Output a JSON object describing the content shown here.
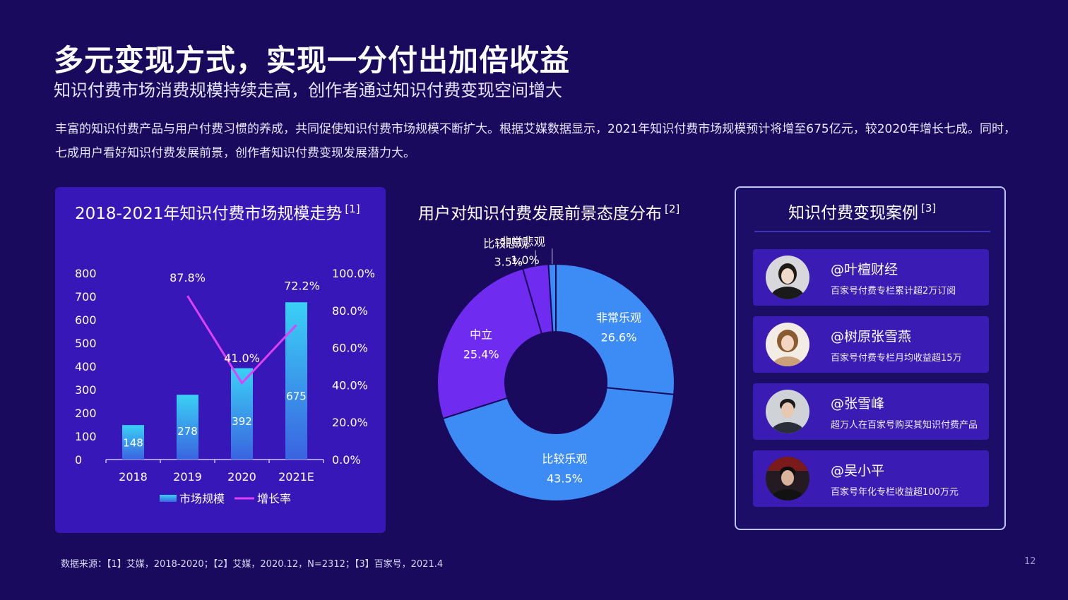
{
  "page": {
    "title": "多元变现方式，实现一分付出加倍收益",
    "subtitle": "知识付费市场消费规模持续走高，创作者通过知识付费变现空间增大",
    "paragraph": "丰富的知识付费产品与用户付费习惯的养成，共同促使知识付费市场规模不断扩大。根据艾媒数据显示，2021年知识付费市场规模预计将增至675亿元，较2020年增长七成。同时，七成用户看好知识付费发展前景，创作者知识付费变现发展潜力大。",
    "footnote": "数据来源：【1】艾媒，2018-2020；【2】艾媒，2020.12，N=2312；【3】百家号，2021.4",
    "page_number": "12"
  },
  "chart_data": [
    {
      "type": "bar",
      "title": "2018-2021年知识付费市场规模走势",
      "title_ref": "[1]",
      "categories": [
        "2018",
        "2019",
        "2020",
        "2021E"
      ],
      "series": [
        {
          "name": "市场规模",
          "type": "bar",
          "axis": "left",
          "values": [
            148,
            278,
            392,
            675
          ],
          "labels": [
            "148",
            "278",
            "392",
            "675"
          ],
          "color": "#3ad1f5"
        },
        {
          "name": "增长率",
          "type": "line",
          "axis": "right",
          "values": [
            null,
            87.8,
            41.0,
            72.2
          ],
          "labels": [
            "",
            "87.8%",
            "41.0%",
            "72.2%"
          ],
          "color": "#e040fb"
        }
      ],
      "ylim": [
        0,
        800
      ],
      "y_ticks": [
        "0",
        "100",
        "200",
        "300",
        "400",
        "500",
        "600",
        "700",
        "800"
      ],
      "y2lim": [
        0,
        100
      ],
      "y2_ticks": [
        "0.0%",
        "20.0%",
        "40.0%",
        "60.0%",
        "80.0%",
        "100.0%"
      ],
      "legend": "bottom"
    },
    {
      "type": "pie",
      "title": "用户对知识付费发展前景态度分布",
      "title_ref": "[2]",
      "donut": true,
      "slices": [
        {
          "label": "非常乐观",
          "value": 26.6,
          "text": "26.6%",
          "color": "#3d8bf5"
        },
        {
          "label": "比较乐观",
          "value": 43.5,
          "text": "43.5%",
          "color": "#3d8bf5"
        },
        {
          "label": "中立",
          "value": 25.4,
          "text": "25.4%",
          "color": "#6f2cf0"
        },
        {
          "label": "比较悲观",
          "value": 3.5,
          "text": "3.5%",
          "color": "#6f2cf0"
        },
        {
          "label": "非常悲观",
          "value": 1.0,
          "text": "1.0%",
          "color": "#3d8bf5"
        }
      ]
    }
  ],
  "cases": {
    "title": "知识付费变现案例",
    "title_ref": "[3]",
    "items": [
      {
        "name": "@叶檀财经",
        "desc": "百家号付费专栏累计超2万订阅",
        "avatar_bg": "#d8d8dc"
      },
      {
        "name": "@树原张雪燕",
        "desc": "百家号付费专栏月均收益超15万",
        "avatar_bg": "#f3ece4"
      },
      {
        "name": "@张雪峰",
        "desc": "超万人在百家号购买其知识付费产品",
        "avatar_bg": "#cfd3d8"
      },
      {
        "name": "@吴小平",
        "desc": "百家号年化专栏收益超100万元",
        "avatar_bg": "#241a22"
      }
    ]
  }
}
